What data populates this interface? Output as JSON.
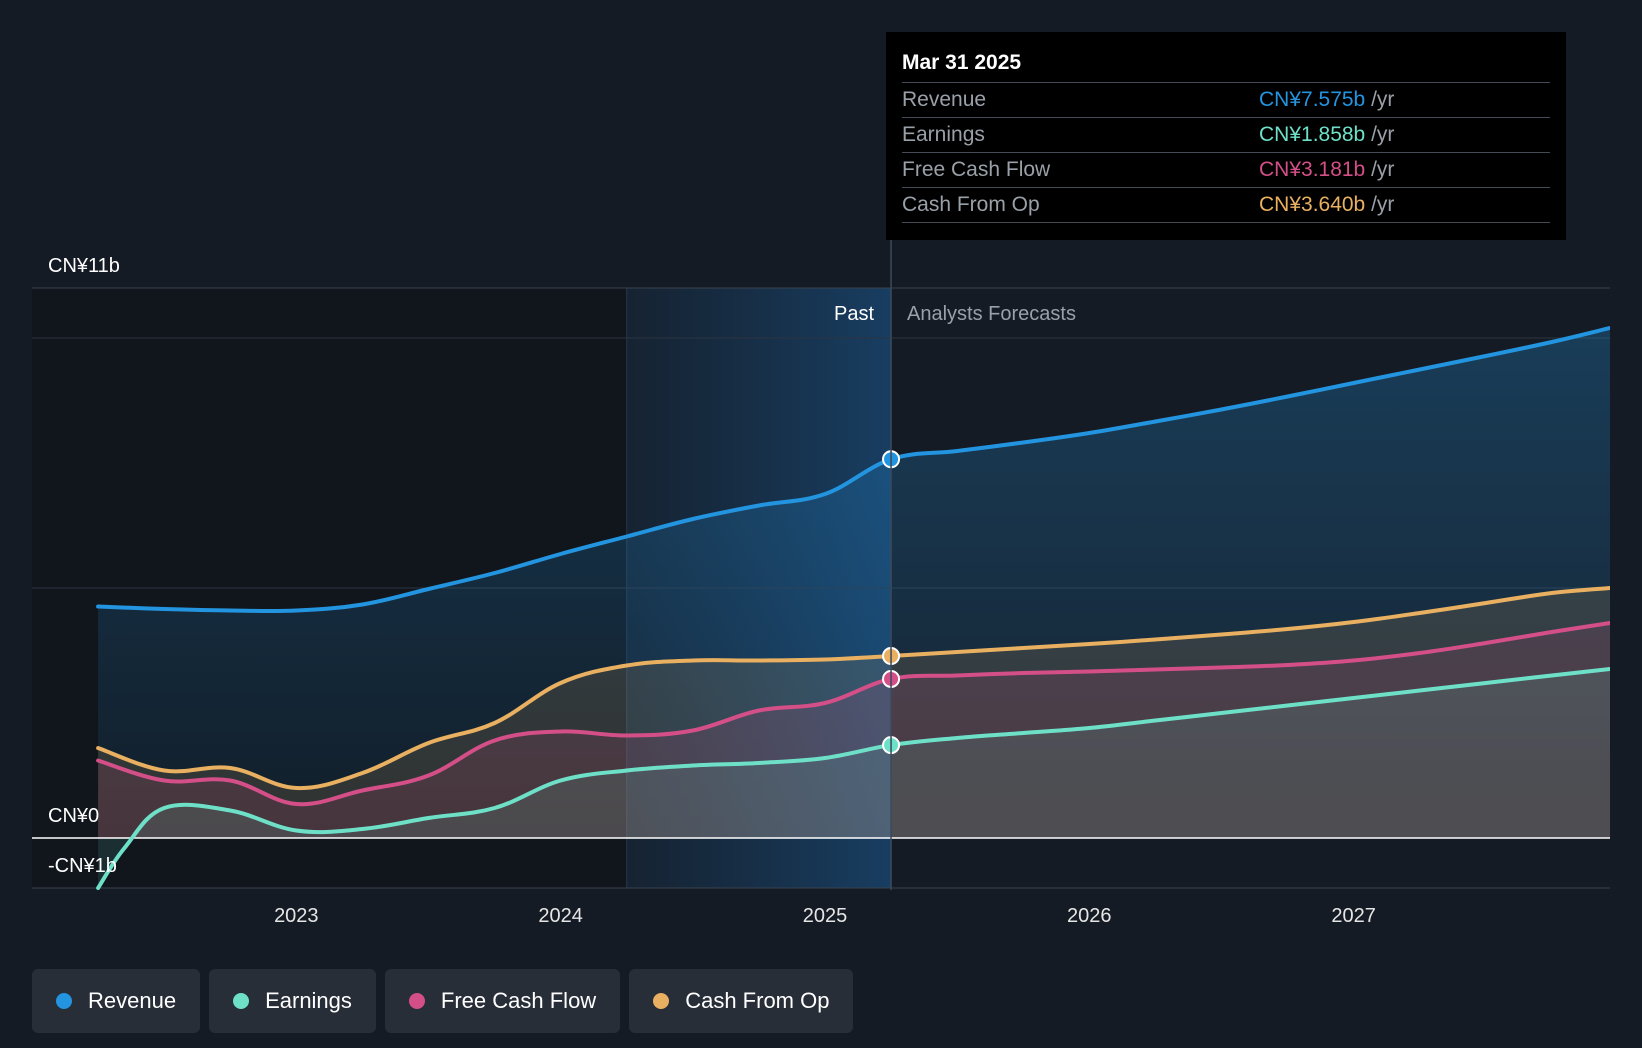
{
  "colors": {
    "background": "#151b24",
    "revenue": "#2394df",
    "earnings": "#6ee0c8",
    "free_cash_flow": "#d44f88",
    "cash_from_op": "#e8b060"
  },
  "tooltip": {
    "date": "Mar 31 2025",
    "rows": [
      {
        "label": "Revenue",
        "value": "CN¥7.575b",
        "unit": "/yr",
        "color": "#2394df"
      },
      {
        "label": "Earnings",
        "value": "CN¥1.858b",
        "unit": "/yr",
        "color": "#6ee0c8"
      },
      {
        "label": "Free Cash Flow",
        "value": "CN¥3.181b",
        "unit": "/yr",
        "color": "#d44f88"
      },
      {
        "label": "Cash From Op",
        "value": "CN¥3.640b",
        "unit": "/yr",
        "color": "#e8b060"
      }
    ]
  },
  "legend": [
    {
      "label": "Revenue",
      "color": "#2394df"
    },
    {
      "label": "Earnings",
      "color": "#6ee0c8"
    },
    {
      "label": "Free Cash Flow",
      "color": "#d44f88"
    },
    {
      "label": "Cash From Op",
      "color": "#e8b060"
    }
  ],
  "chart_data": {
    "type": "line",
    "title": "",
    "xlabel": "",
    "ylabel": "",
    "ylim": [
      -1,
      11
    ],
    "xlim": [
      2022.0,
      2027.97
    ],
    "x_ticks": [
      2023,
      2024,
      2025,
      2026,
      2027
    ],
    "x_tick_labels": [
      "2023",
      "2024",
      "2025",
      "2026",
      "2027"
    ],
    "y_tick_labels": [
      {
        "value": 11,
        "label": "CN¥11b"
      },
      {
        "value": 0,
        "label": "CN¥0"
      },
      {
        "value": -1,
        "label": "-CN¥1b"
      }
    ],
    "gridlines_y": [
      10,
      5
    ],
    "past_label": "Past",
    "forecast_label": "Analysts Forecasts",
    "forecast_start": 2025.25,
    "highlight_start": 2024.25,
    "series": [
      {
        "name": "Revenue",
        "key": "revenue",
        "x": [
          2022.25,
          2022.5,
          2022.75,
          2023.0,
          2023.25,
          2023.5,
          2023.75,
          2024.0,
          2024.25,
          2024.5,
          2024.75,
          2025.0,
          2025.25,
          2025.5,
          2025.75,
          2026.0,
          2026.25,
          2026.5,
          2026.75,
          2027.0,
          2027.25,
          2027.5,
          2027.75,
          2027.97
        ],
        "values": [
          4.63,
          4.58,
          4.55,
          4.55,
          4.67,
          4.98,
          5.3,
          5.68,
          6.03,
          6.38,
          6.65,
          6.88,
          7.575,
          7.74,
          7.91,
          8.1,
          8.33,
          8.57,
          8.83,
          9.1,
          9.37,
          9.64,
          9.92,
          10.2
        ],
        "marker_index": 12
      },
      {
        "name": "Earnings",
        "key": "earnings",
        "x": [
          2022.25,
          2022.35,
          2022.5,
          2022.75,
          2023.0,
          2023.25,
          2023.5,
          2023.75,
          2024.0,
          2024.25,
          2024.5,
          2024.75,
          2025.0,
          2025.25,
          2025.5,
          2025.75,
          2026.0,
          2026.25,
          2026.5,
          2026.75,
          2027.0,
          2027.25,
          2027.5,
          2027.75,
          2027.97
        ],
        "values": [
          -1.0,
          -0.2,
          0.6,
          0.55,
          0.15,
          0.18,
          0.4,
          0.6,
          1.15,
          1.35,
          1.45,
          1.5,
          1.6,
          1.858,
          2.0,
          2.1,
          2.2,
          2.35,
          2.5,
          2.65,
          2.8,
          2.95,
          3.1,
          3.25,
          3.38
        ],
        "marker_index": 13
      },
      {
        "name": "Free Cash Flow",
        "key": "free_cash_flow",
        "x": [
          2022.25,
          2022.5,
          2022.75,
          2023.0,
          2023.25,
          2023.5,
          2023.75,
          2024.0,
          2024.25,
          2024.5,
          2024.75,
          2025.0,
          2025.25,
          2025.5,
          2025.75,
          2026.0,
          2026.25,
          2026.5,
          2026.75,
          2027.0,
          2027.25,
          2027.5,
          2027.75,
          2027.97
        ],
        "values": [
          1.55,
          1.15,
          1.15,
          0.68,
          0.95,
          1.25,
          1.95,
          2.13,
          2.05,
          2.15,
          2.55,
          2.7,
          3.181,
          3.25,
          3.3,
          3.33,
          3.37,
          3.41,
          3.46,
          3.55,
          3.7,
          3.9,
          4.12,
          4.3
        ],
        "marker_index": 12
      },
      {
        "name": "Cash From Op",
        "key": "cash_from_op",
        "x": [
          2022.25,
          2022.5,
          2022.75,
          2023.0,
          2023.25,
          2023.5,
          2023.75,
          2024.0,
          2024.25,
          2024.5,
          2024.75,
          2025.0,
          2025.25,
          2025.5,
          2025.75,
          2026.0,
          2026.25,
          2026.5,
          2026.75,
          2027.0,
          2027.25,
          2027.5,
          2027.75,
          2027.97
        ],
        "values": [
          1.8,
          1.35,
          1.4,
          1.0,
          1.3,
          1.9,
          2.3,
          3.1,
          3.45,
          3.55,
          3.55,
          3.57,
          3.64,
          3.72,
          3.8,
          3.88,
          3.97,
          4.07,
          4.18,
          4.32,
          4.5,
          4.7,
          4.9,
          5.0
        ],
        "marker_index": 12
      }
    ]
  }
}
